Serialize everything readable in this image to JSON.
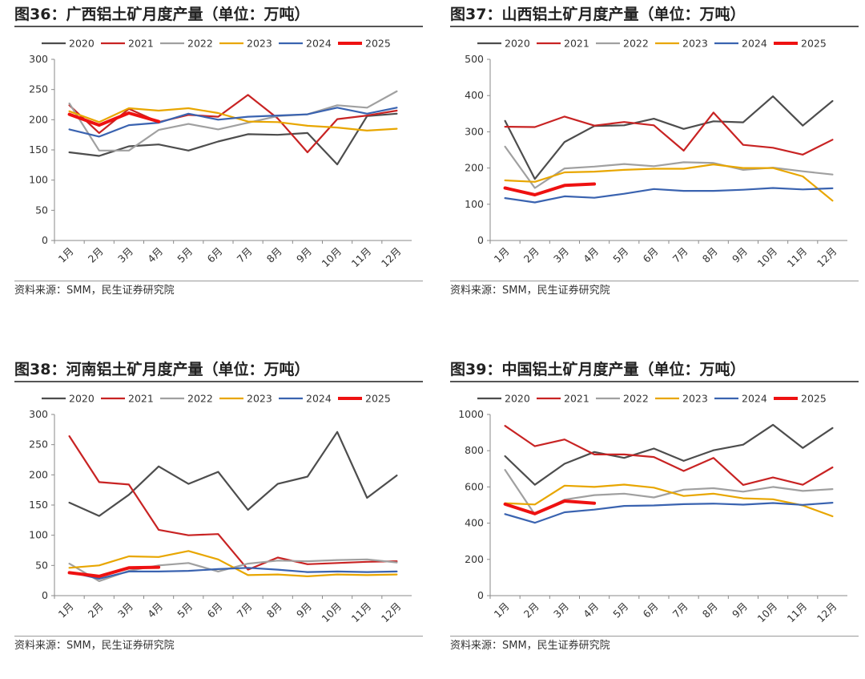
{
  "months": [
    "1月",
    "2月",
    "3月",
    "4月",
    "5月",
    "6月",
    "7月",
    "8月",
    "9月",
    "10月",
    "11月",
    "12月"
  ],
  "series_style": [
    {
      "name": "2020",
      "color": "#4d4d4d",
      "width": 2.2
    },
    {
      "name": "2021",
      "color": "#c82323",
      "width": 2.2
    },
    {
      "name": "2022",
      "color": "#a0a0a0",
      "width": 2.2
    },
    {
      "name": "2023",
      "color": "#e8a600",
      "width": 2.2
    },
    {
      "name": "2024",
      "color": "#3a63b0",
      "width": 2.2
    },
    {
      "name": "2025",
      "color": "#ee1111",
      "width": 4
    }
  ],
  "chart_data": [
    {
      "type": "line",
      "title": "图36：广西铝土矿月度产量（单位：万吨）",
      "source": "资料来源：SMM，民生证券研究院",
      "ylim": [
        0,
        300
      ],
      "yticks": [
        0,
        50,
        100,
        150,
        200,
        250,
        300
      ],
      "legend_position": "top",
      "series": [
        {
          "name": "2020",
          "values": [
            146,
            140,
            156,
            159,
            149,
            164,
            176,
            175,
            178,
            126,
            206,
            210
          ]
        },
        {
          "name": "2021",
          "values": [
            224,
            178,
            218,
            196,
            208,
            205,
            241,
            202,
            146,
            201,
            207,
            215
          ]
        },
        {
          "name": "2022",
          "values": [
            227,
            149,
            149,
            183,
            193,
            184,
            195,
            206,
            209,
            224,
            220,
            247
          ]
        },
        {
          "name": "2023",
          "values": [
            214,
            196,
            219,
            215,
            219,
            211,
            197,
            196,
            190,
            187,
            182,
            185
          ]
        },
        {
          "name": "2024",
          "values": [
            184,
            172,
            191,
            195,
            210,
            200,
            205,
            207,
            209,
            220,
            210,
            220
          ]
        },
        {
          "name": "2025",
          "values": [
            209,
            191,
            211,
            197
          ]
        }
      ]
    },
    {
      "type": "line",
      "title": "图37：山西铝土矿月度产量（单位：万吨）",
      "source": "资料来源：SMM，民生证券研究院",
      "ylim": [
        0,
        500
      ],
      "yticks": [
        0,
        100,
        200,
        300,
        400,
        500
      ],
      "legend_position": "top",
      "series": [
        {
          "name": "2020",
          "values": [
            330,
            170,
            272,
            316,
            318,
            336,
            308,
            329,
            326,
            398,
            317,
            385
          ]
        },
        {
          "name": "2021",
          "values": [
            314,
            313,
            342,
            317,
            327,
            318,
            248,
            353,
            264,
            256,
            237,
            278
          ]
        },
        {
          "name": "2022",
          "values": [
            259,
            145,
            199,
            204,
            211,
            205,
            216,
            214,
            195,
            201,
            191,
            182
          ]
        },
        {
          "name": "2023",
          "values": [
            166,
            162,
            188,
            190,
            195,
            198,
            198,
            210,
            200,
            200,
            177,
            110
          ]
        },
        {
          "name": "2024",
          "values": [
            117,
            105,
            122,
            118,
            129,
            142,
            137,
            137,
            140,
            145,
            141,
            144
          ]
        },
        {
          "name": "2025",
          "values": [
            145,
            126,
            152,
            156
          ]
        }
      ]
    },
    {
      "type": "line",
      "title": "图38：河南铝土矿月度产量（单位：万吨）",
      "source": "资料来源：SMM，民生证券研究院",
      "ylim": [
        0,
        300
      ],
      "yticks": [
        0,
        50,
        100,
        150,
        200,
        250,
        300
      ],
      "legend_position": "top",
      "series": [
        {
          "name": "2020",
          "values": [
            154,
            132,
            167,
            214,
            185,
            205,
            142,
            185,
            197,
            271,
            162,
            199
          ]
        },
        {
          "name": "2021",
          "values": [
            264,
            188,
            184,
            109,
            100,
            102,
            43,
            63,
            52,
            54,
            56,
            57
          ]
        },
        {
          "name": "2022",
          "values": [
            53,
            24,
            41,
            50,
            54,
            40,
            53,
            58,
            57,
            59,
            60,
            55
          ]
        },
        {
          "name": "2023",
          "values": [
            46,
            50,
            65,
            64,
            74,
            60,
            34,
            35,
            32,
            35,
            34,
            35
          ]
        },
        {
          "name": "2024",
          "values": [
            39,
            28,
            40,
            40,
            41,
            44,
            46,
            43,
            39,
            40,
            39,
            40
          ]
        },
        {
          "name": "2025",
          "values": [
            38,
            32,
            46,
            47
          ]
        }
      ]
    },
    {
      "type": "line",
      "title": "图39：中国铝土矿月度产量（单位：万吨）",
      "source": "资料来源：SMM，民生证券研究院",
      "ylim": [
        0,
        1000
      ],
      "yticks": [
        0,
        200,
        400,
        600,
        800,
        1000
      ],
      "legend_position": "top",
      "series": [
        {
          "name": "2020",
          "values": [
            770,
            612,
            728,
            793,
            760,
            812,
            744,
            802,
            833,
            943,
            815,
            925
          ]
        },
        {
          "name": "2021",
          "values": [
            937,
            825,
            862,
            779,
            779,
            765,
            688,
            760,
            611,
            652,
            612,
            708
          ]
        },
        {
          "name": "2022",
          "values": [
            694,
            448,
            530,
            555,
            563,
            542,
            585,
            593,
            574,
            600,
            578,
            588
          ]
        },
        {
          "name": "2023",
          "values": [
            510,
            503,
            607,
            600,
            613,
            596,
            550,
            563,
            537,
            532,
            498,
            438
          ]
        },
        {
          "name": "2024",
          "values": [
            450,
            402,
            460,
            475,
            495,
            498,
            505,
            508,
            502,
            511,
            501,
            513
          ]
        },
        {
          "name": "2025",
          "values": [
            505,
            452,
            522,
            510
          ]
        }
      ]
    }
  ]
}
